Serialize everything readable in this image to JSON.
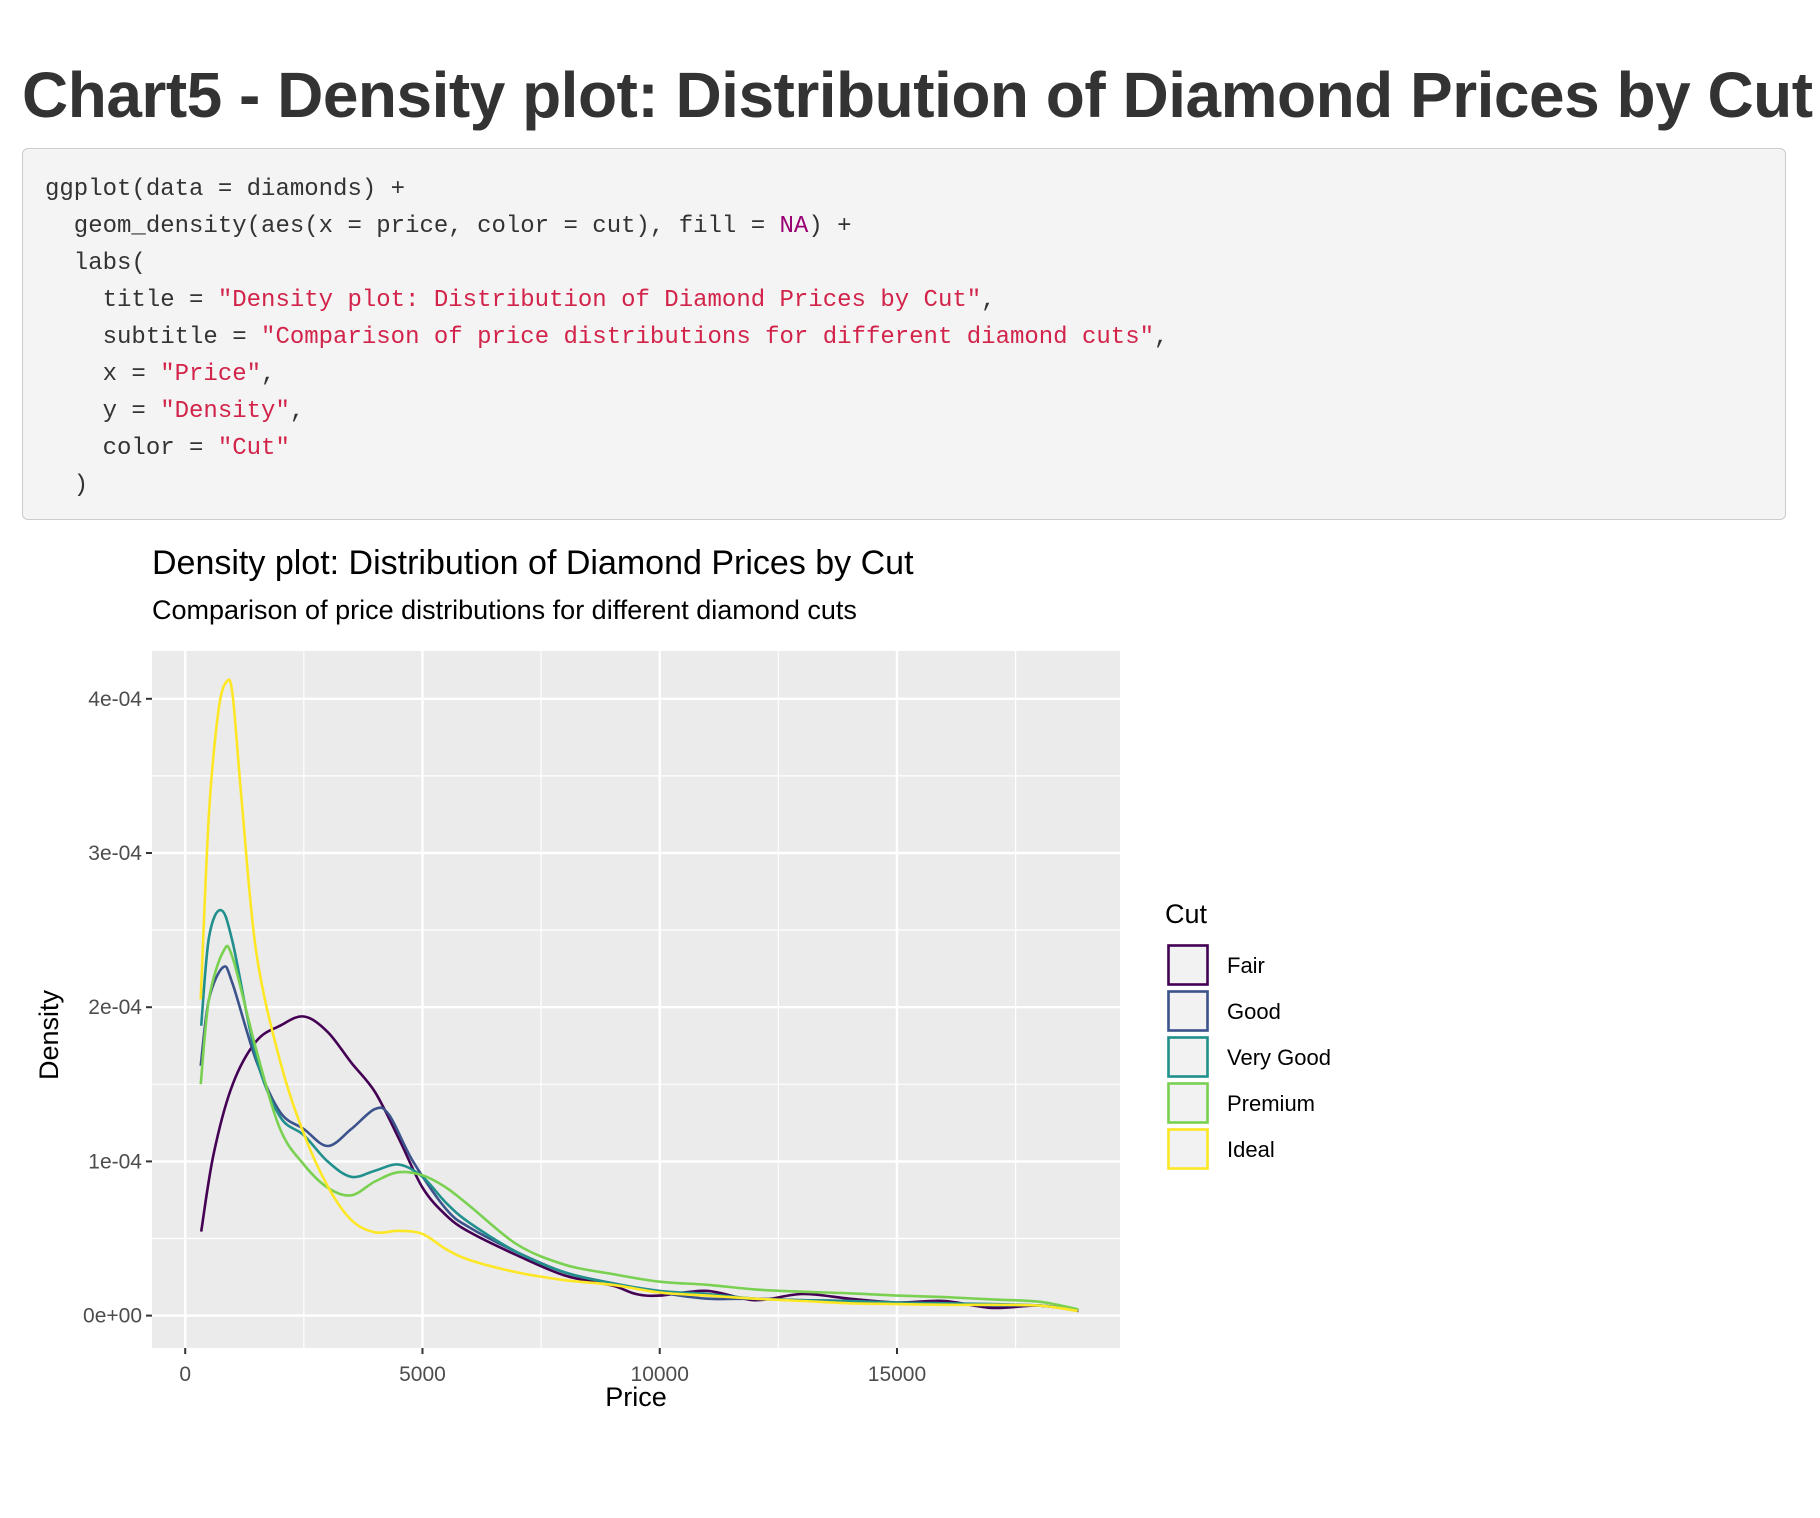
{
  "page": {
    "title": "Chart5 - Density plot: Distribution of Diamond Prices by Cut"
  },
  "code": {
    "lines": [
      [
        {
          "t": "ggplot(data = diamonds) +",
          "c": "plain"
        }
      ],
      [
        {
          "t": "  geom_density(aes(x = price, color = cut), fill = ",
          "c": "plain"
        },
        {
          "t": "NA",
          "c": "na"
        },
        {
          "t": ") +",
          "c": "plain"
        }
      ],
      [
        {
          "t": "  labs(",
          "c": "plain"
        }
      ],
      [
        {
          "t": "    title = ",
          "c": "plain"
        },
        {
          "t": "\"Density plot: Distribution of Diamond Prices by Cut\"",
          "c": "str"
        },
        {
          "t": ",",
          "c": "plain"
        }
      ],
      [
        {
          "t": "    subtitle = ",
          "c": "plain"
        },
        {
          "t": "\"Comparison of price distributions for different diamond cuts\"",
          "c": "str"
        },
        {
          "t": ",",
          "c": "plain"
        }
      ],
      [
        {
          "t": "    x = ",
          "c": "plain"
        },
        {
          "t": "\"Price\"",
          "c": "str"
        },
        {
          "t": ",",
          "c": "plain"
        }
      ],
      [
        {
          "t": "    y = ",
          "c": "plain"
        },
        {
          "t": "\"Density\"",
          "c": "str"
        },
        {
          "t": ",",
          "c": "plain"
        }
      ],
      [
        {
          "t": "    color = ",
          "c": "plain"
        },
        {
          "t": "\"Cut\"",
          "c": "str"
        }
      ],
      [
        {
          "t": "  )",
          "c": "plain"
        }
      ]
    ]
  },
  "chart_data": {
    "type": "line",
    "title": "Density plot: Distribution of Diamond Prices by Cut",
    "subtitle": "Comparison of price distributions for different diamond cuts",
    "xlabel": "Price",
    "ylabel": "Density",
    "xlim": [
      -700,
      19700
    ],
    "ylim": [
      -2.1e-05,
      0.000431
    ],
    "xticks": [
      0,
      5000,
      10000,
      15000
    ],
    "xtick_labels": [
      "0",
      "5000",
      "10000",
      "15000"
    ],
    "yticks": [
      0,
      0.0001,
      0.0002,
      0.0003,
      0.0004
    ],
    "ytick_labels": [
      "0e+00",
      "1e-04",
      "2e-04",
      "3e-04",
      "4e-04"
    ],
    "grid": true,
    "legend": {
      "title": "Cut",
      "position": "right"
    },
    "series": [
      {
        "name": "Fair",
        "color": "#440154",
        "x": [
          337,
          600,
          1000,
          1500,
          2000,
          2500,
          3000,
          3500,
          4000,
          4500,
          5000,
          5500,
          6000,
          7000,
          8000,
          9000,
          9500,
          10000,
          11000,
          12000,
          13000,
          14000,
          15000,
          16000,
          17000,
          18000,
          18823
        ],
        "y": [
          5.45e-05,
          0.000105,
          0.00015,
          0.000178,
          0.000188,
          0.000194,
          0.000184,
          0.000164,
          0.000145,
          0.000115,
          8.3e-05,
          6.5e-05,
          5.4e-05,
          3.9e-05,
          2.6e-05,
          1.95e-05,
          1.4e-05,
          1.3e-05,
          1.6e-05,
          1e-05,
          1.4e-05,
          1.1e-05,
          8.5e-06,
          9.5e-06,
          5e-06,
          6.5e-06,
          3e-06
        ]
      },
      {
        "name": "Good",
        "color": "#3b528b",
        "x": [
          327,
          500,
          800,
          1000,
          1500,
          2000,
          2500,
          3000,
          3500,
          4000,
          4300,
          4800,
          5500,
          6000,
          7000,
          8000,
          9000,
          10000,
          11000,
          12000,
          13000,
          14000,
          15000,
          16000,
          17000,
          18000,
          18788
        ],
        "y": [
          0.000162,
          0.000205,
          0.000226,
          0.000215,
          0.000165,
          0.000132,
          0.000121,
          0.00011,
          0.000121,
          0.000134,
          0.00013,
          0.0001,
          6.9e-05,
          5.7e-05,
          4.1e-05,
          2.8e-05,
          2.1e-05,
          1.5e-05,
          1.1e-05,
          1.1e-05,
          1e-05,
          9.5e-06,
          8e-06,
          8e-06,
          6.5e-06,
          6.5e-06,
          3.5e-06
        ]
      },
      {
        "name": "Very Good",
        "color": "#21908c",
        "x": [
          336,
          500,
          750,
          1000,
          1500,
          2000,
          2500,
          3000,
          3500,
          4000,
          4500,
          5000,
          5500,
          6000,
          7000,
          8000,
          9000,
          10000,
          11000,
          12000,
          13000,
          14000,
          15000,
          16000,
          17000,
          18000,
          18818
        ],
        "y": [
          0.000188,
          0.000245,
          0.000263,
          0.000242,
          0.000167,
          0.000129,
          0.000117,
          0.0001,
          9e-05,
          9.4e-05,
          9.8e-05,
          9e-05,
          7.3e-05,
          6e-05,
          4.1e-05,
          2.8e-05,
          2.1e-05,
          1.6e-05,
          1.4e-05,
          1.1e-05,
          1e-05,
          9.5e-06,
          8.5e-06,
          8e-06,
          7.5e-06,
          6.5e-06,
          3.5e-06
        ]
      },
      {
        "name": "Premium",
        "color": "#7ad151",
        "x": [
          326,
          500,
          800,
          1000,
          1500,
          2000,
          2500,
          3000,
          3500,
          4000,
          4500,
          5000,
          5500,
          6000,
          7000,
          8000,
          9000,
          10000,
          11000,
          12000,
          13000,
          14000,
          15000,
          16000,
          17000,
          18000,
          18823
        ],
        "y": [
          0.00015,
          0.000205,
          0.000236,
          0.000232,
          0.000172,
          0.000121,
          9.8e-05,
          8.3e-05,
          7.8e-05,
          8.7e-05,
          9.3e-05,
          9.1e-05,
          8.3e-05,
          7.1e-05,
          4.6e-05,
          3.3e-05,
          2.7e-05,
          2.2e-05,
          2e-05,
          1.7e-05,
          1.55e-05,
          1.45e-05,
          1.3e-05,
          1.2e-05,
          1.05e-05,
          9e-06,
          4e-06
        ]
      },
      {
        "name": "Ideal",
        "color": "#fde725",
        "x": [
          326,
          500,
          700,
          870,
          1000,
          1200,
          1500,
          2000,
          2500,
          3000,
          3500,
          4000,
          4500,
          5000,
          5500,
          6000,
          7000,
          8000,
          9000,
          10000,
          11000,
          12000,
          13000,
          14000,
          15000,
          16000,
          17000,
          18000,
          18806
        ],
        "y": [
          0.000205,
          0.000325,
          0.000392,
          0.000411,
          0.000402,
          0.00033,
          0.000235,
          0.000165,
          0.000118,
          8.4e-05,
          6.2e-05,
          5.4e-05,
          5.5e-05,
          5.3e-05,
          4.3e-05,
          3.6e-05,
          2.8e-05,
          2.3e-05,
          2e-05,
          1.5e-05,
          1.3e-05,
          1.1e-05,
          9.5e-06,
          8e-06,
          7.5e-06,
          7e-06,
          7e-06,
          6.5e-06,
          3e-06
        ]
      }
    ]
  }
}
